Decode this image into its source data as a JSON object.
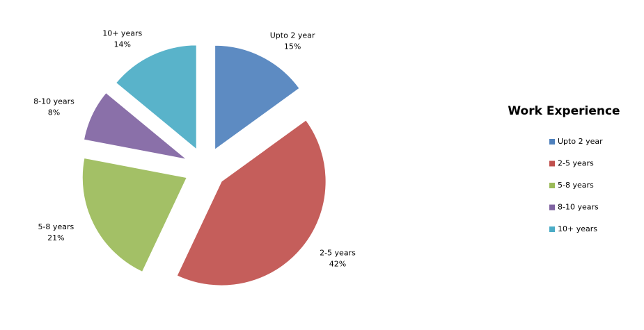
{
  "chart_data": {
    "type": "pie",
    "title": "Work Experience",
    "categories": [
      "Upto 2 year",
      "2-5 years",
      "5-8 years",
      "8-10 years",
      "10+ years"
    ],
    "values": [
      15,
      42,
      21,
      8,
      14
    ],
    "value_labels": [
      "15%",
      "42%",
      "21%",
      "8%",
      "14%"
    ],
    "colors": [
      "#4f81bd",
      "#c0504d",
      "#9bbb59",
      "#8064a2",
      "#4bacc6"
    ],
    "legend": "right"
  }
}
